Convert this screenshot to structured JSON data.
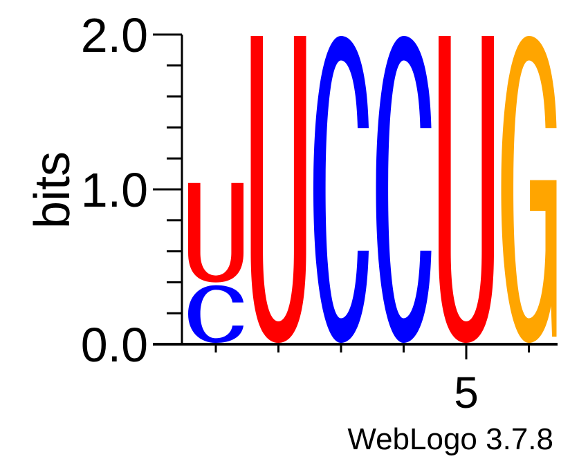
{
  "chart_data": {
    "type": "sequence-logo",
    "ylabel": "bits",
    "ylim": [
      0,
      2.0
    ],
    "yticks": [
      {
        "value": 0.0,
        "label": "0.0"
      },
      {
        "value": 1.0,
        "label": "1.0"
      },
      {
        "value": 2.0,
        "label": "2.0"
      }
    ],
    "xticks": [
      {
        "position": 5,
        "label": "5"
      }
    ],
    "positions": [
      {
        "position": 1,
        "stack": [
          {
            "letter": "C",
            "bits": 0.39
          },
          {
            "letter": "U",
            "bits": 0.66
          }
        ]
      },
      {
        "position": 2,
        "stack": [
          {
            "letter": "U",
            "bits": 2.0
          }
        ]
      },
      {
        "position": 3,
        "stack": [
          {
            "letter": "C",
            "bits": 2.0
          }
        ]
      },
      {
        "position": 4,
        "stack": [
          {
            "letter": "C",
            "bits": 2.0
          }
        ]
      },
      {
        "position": 5,
        "stack": [
          {
            "letter": "U",
            "bits": 2.0
          }
        ]
      },
      {
        "position": 6,
        "stack": [
          {
            "letter": "G",
            "bits": 2.0
          }
        ]
      }
    ],
    "colors": {
      "U": "#ff0000",
      "C": "#0000ff",
      "G": "#ffa500",
      "A": "#00aa00"
    },
    "footer": "WebLogo 3.7.8"
  }
}
